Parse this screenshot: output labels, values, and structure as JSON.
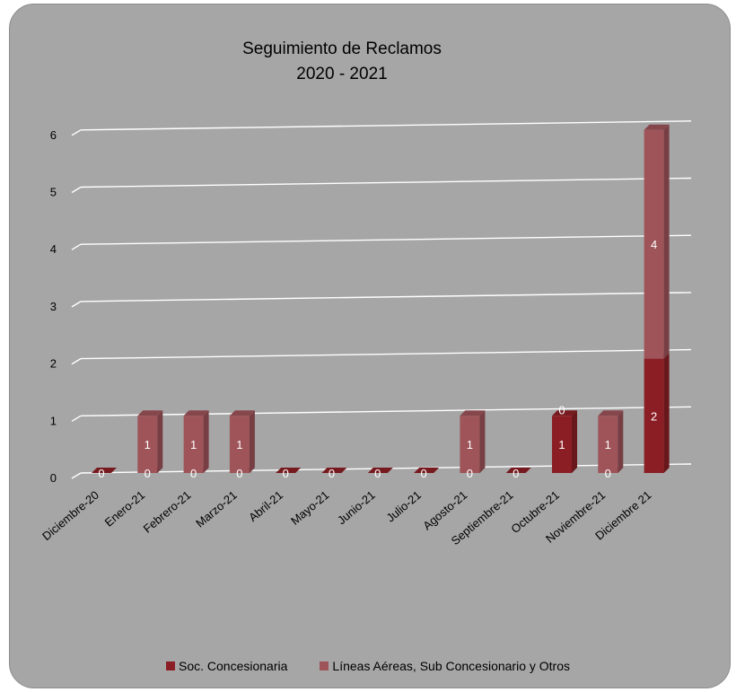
{
  "chart_data": {
    "type": "bar",
    "stacked": true,
    "style": "3d",
    "title": [
      "Seguimiento de Reclamos",
      "2020 - 2021"
    ],
    "categories": [
      "Diciembre-20",
      "Enero-21",
      "Febrero-21",
      "Marzo-21",
      "Abril-21",
      "Mayo-21",
      "Junio-21",
      "Julio-21",
      "Agosto-21",
      "Septiembre-21",
      "Octubre-21",
      "Noviembre-21",
      "Diciembre 21"
    ],
    "series": [
      {
        "name": "Soc. Concesionaria",
        "values": [
          0,
          0,
          0,
          0,
          0,
          0,
          0,
          0,
          0,
          0,
          1,
          0,
          2
        ],
        "color": "#8b1e25"
      },
      {
        "name": "Líneas Aéreas, Sub Concesionario y Otros",
        "values": [
          0,
          1,
          1,
          1,
          0,
          0,
          0,
          0,
          1,
          0,
          0,
          1,
          4
        ],
        "color": "#9e5459"
      }
    ],
    "data_labels_series2": [
      "",
      "1",
      "1",
      "1",
      "",
      "",
      "",
      "",
      "1",
      "",
      "0",
      "1",
      "4"
    ],
    "ylim": [
      0,
      6
    ],
    "yticks": [
      0,
      1,
      2,
      3,
      4,
      5,
      6
    ],
    "grid": true,
    "legend_position": "bottom",
    "background": "#a6a6a6",
    "gridline_color": "#ffffff"
  }
}
